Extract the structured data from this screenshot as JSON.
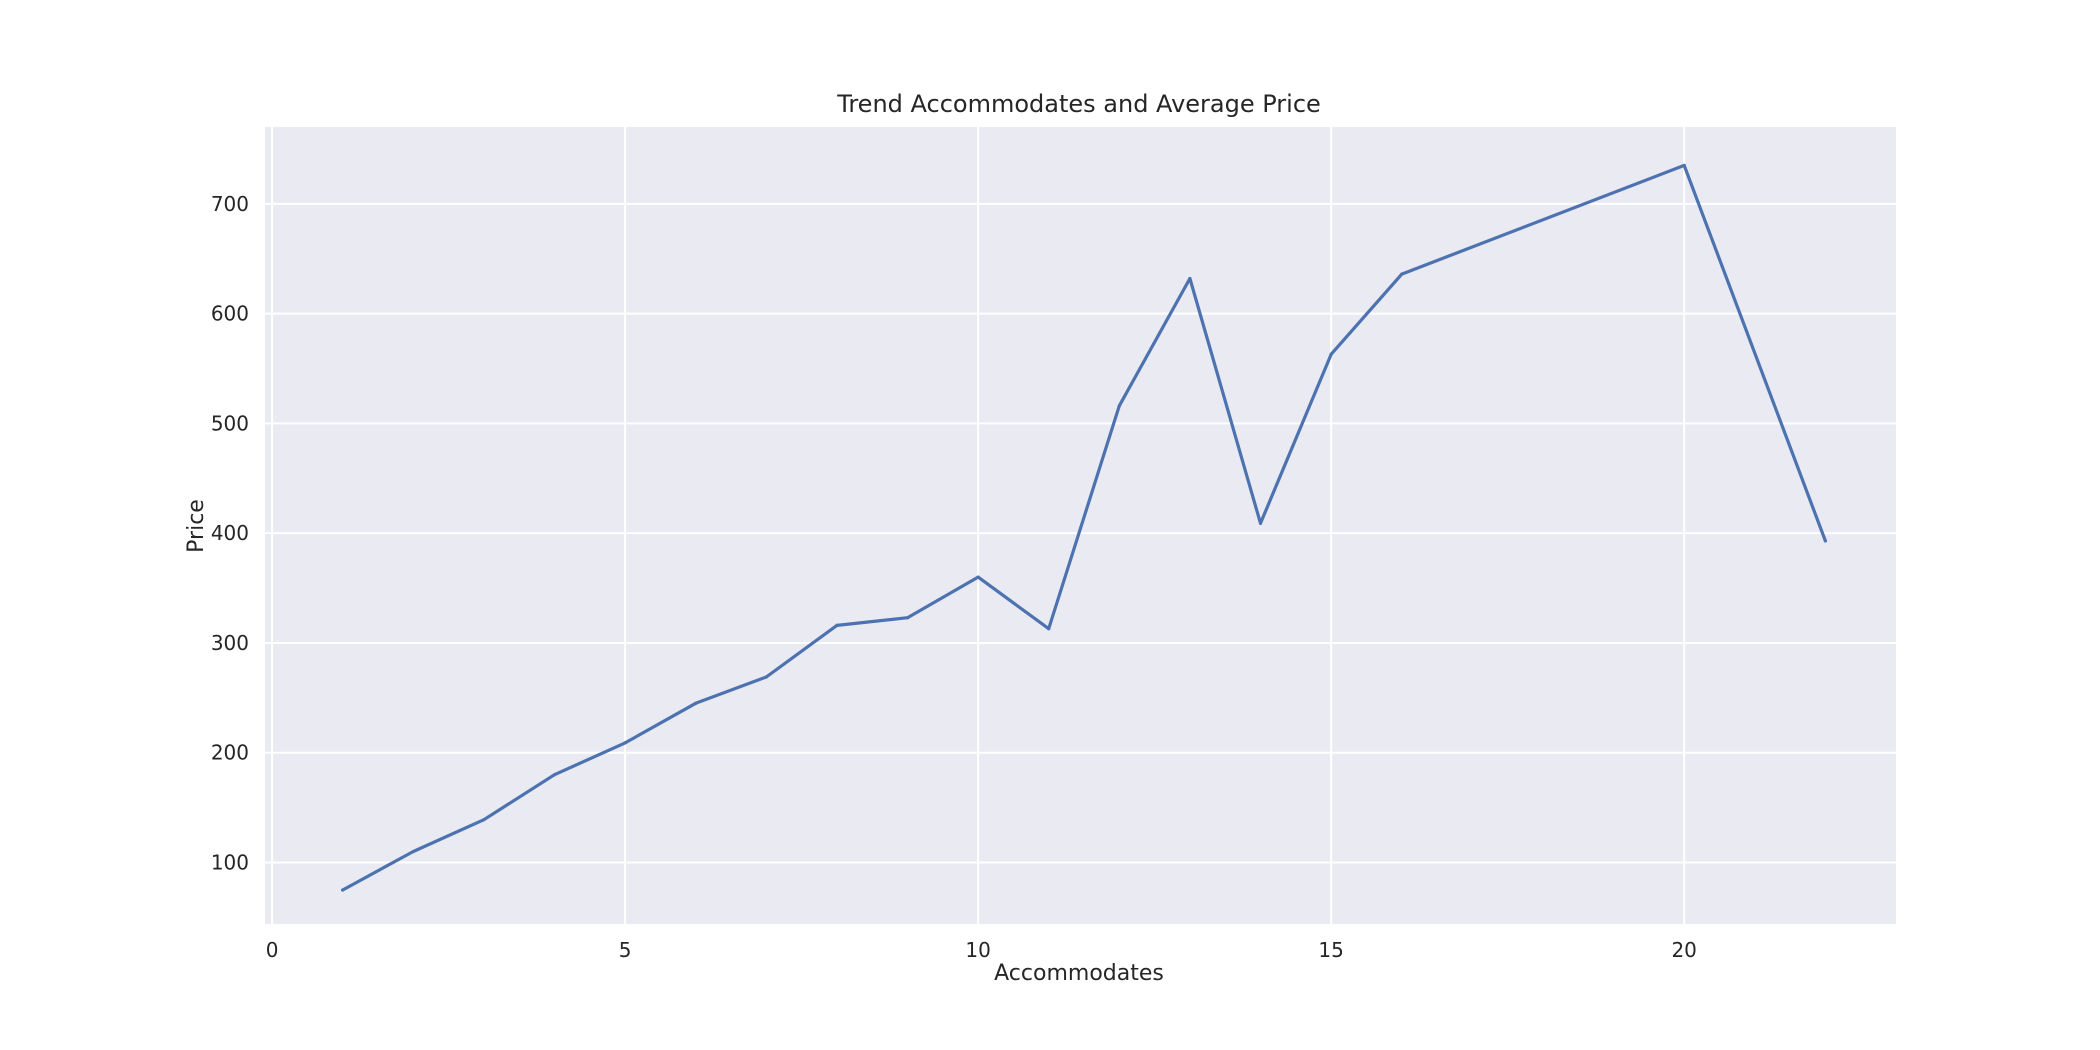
{
  "chart_data": {
    "type": "line",
    "title": "Trend Accommodates and Average Price",
    "xlabel": "Accommodates",
    "ylabel": "Price",
    "xlim": [
      -0.1,
      23
    ],
    "ylim": [
      44,
      770
    ],
    "xticks": [
      0,
      5,
      10,
      15,
      20
    ],
    "yticks": [
      100,
      200,
      300,
      400,
      500,
      600,
      700
    ],
    "grid": true,
    "background_color": "#eaeaf2",
    "grid_color": "#ffffff",
    "series": [
      {
        "color": "#4c72b0",
        "x": [
          1,
          2,
          3,
          4,
          5,
          6,
          7,
          8,
          9,
          10,
          11,
          12,
          13,
          14,
          15,
          16,
          20,
          22
        ],
        "y": [
          75,
          110,
          139,
          180,
          209,
          245,
          269,
          316,
          323,
          360,
          313,
          516,
          632,
          409,
          563,
          636,
          735,
          393
        ]
      }
    ]
  }
}
